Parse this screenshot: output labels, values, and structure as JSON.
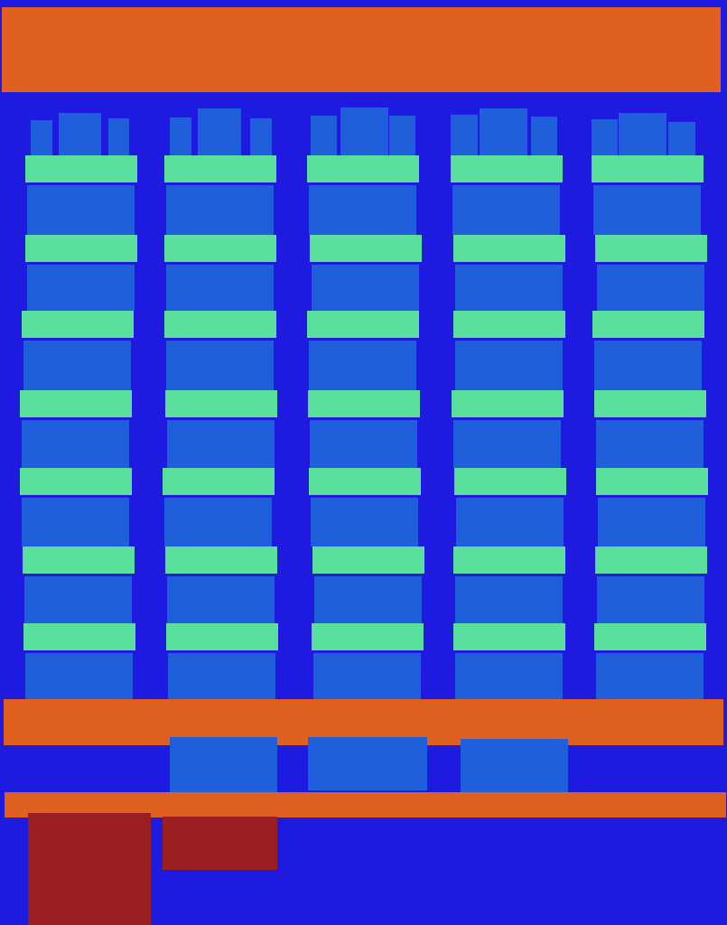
{
  "scene": {
    "colors": {
      "background": "#1f1ae0",
      "orange_bar": "#df601f",
      "blue_tile": "#1f5fdc",
      "green_slab": "#5bdf9c",
      "red_crate": "#9b1f20"
    },
    "tower_count": 5,
    "levels_per_tower": 7,
    "lower_tiles_count": 3,
    "red_crates_count": 2
  }
}
